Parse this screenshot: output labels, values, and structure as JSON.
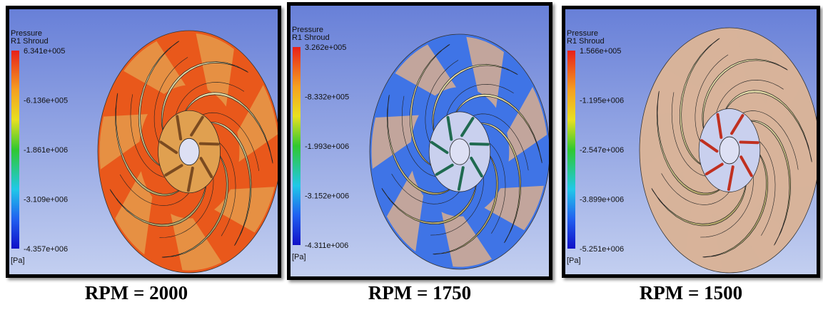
{
  "panels": [
    {
      "legend": {
        "title": "Pressure",
        "subtitle": "R1 Shroud",
        "labels": [
          "6.341e+005",
          "-6.136e+005",
          "-1.861e+006",
          "-3.109e+006",
          "-4.357e+006"
        ],
        "unit": "[Pa]"
      },
      "caption": "RPM = 2000"
    },
    {
      "legend": {
        "title": "Pressure",
        "subtitle": "R1 Shroud",
        "labels": [
          "3.262e+005",
          "-8.332e+005",
          "-1.993e+006",
          "-3.152e+006",
          "-4.311e+006"
        ],
        "unit": "[Pa]"
      },
      "caption": "RPM = 1750"
    },
    {
      "legend": {
        "title": "Pressure",
        "subtitle": "R1 Shroud",
        "labels": [
          "1.566e+005",
          "-1.195e+006",
          "-2.547e+006",
          "-3.899e+006",
          "-5.251e+006"
        ],
        "unit": "[Pa]"
      },
      "caption": "RPM = 1500"
    }
  ]
}
